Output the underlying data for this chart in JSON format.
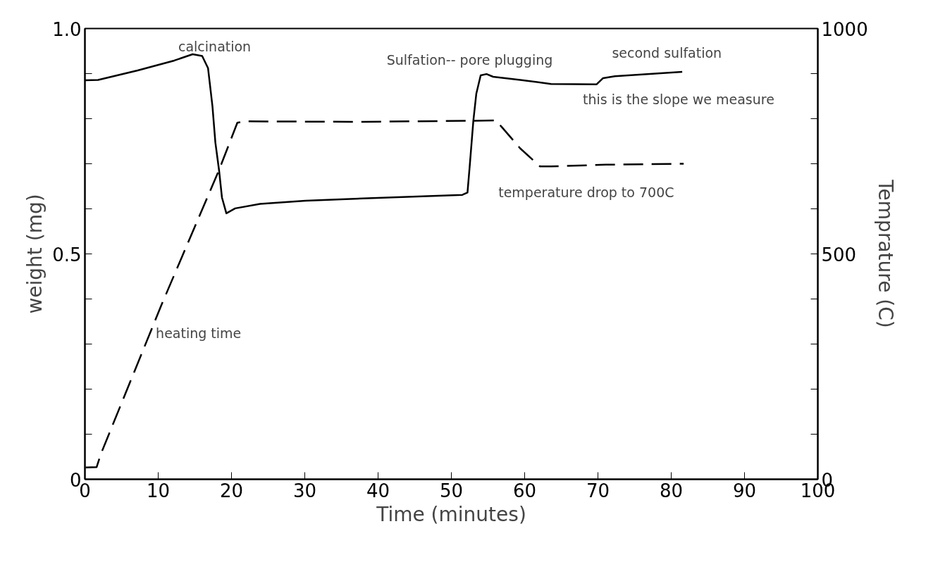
{
  "chart_data": {
    "type": "line",
    "xlabel": "Time (minutes)",
    "ylabel": "weight (mg)",
    "y2label": "Temprature (C)",
    "xlim": [
      0,
      100
    ],
    "xticks": [
      0,
      10,
      20,
      30,
      40,
      50,
      60,
      70,
      80,
      90,
      100
    ],
    "ylim": [
      0,
      1
    ],
    "yticks": [
      0,
      {
        "value": 0.1,
        "label": null
      },
      {
        "value": 0.2,
        "label": null
      },
      {
        "value": 0.3,
        "label": null
      },
      {
        "value": 0.4,
        "label": null
      },
      {
        "value": 0.5,
        "label": "0.5"
      },
      {
        "value": 0.6,
        "label": null
      },
      {
        "value": 0.7,
        "label": null
      },
      {
        "value": 0.8,
        "label": null
      },
      {
        "value": 0.9,
        "label": null
      },
      {
        "value": 1,
        "label": "1.0"
      }
    ],
    "y2lim": [
      0,
      1000
    ],
    "y2ticks": [
      0,
      {
        "value": 100,
        "label": null
      },
      {
        "value": 200,
        "label": null
      },
      {
        "value": 300,
        "label": null
      },
      {
        "value": 400,
        "label": null
      },
      500,
      {
        "value": 600,
        "label": null
      },
      {
        "value": 700,
        "label": null
      },
      {
        "value": 800,
        "label": null
      },
      {
        "value": 900,
        "label": null
      },
      1000
    ],
    "grid": false,
    "series": [
      {
        "color": "#000000",
        "line_style": "solid",
        "x": [
          0,
          1.8,
          7.2,
          12.2,
          14.7,
          16.0,
          16.8,
          17.4,
          17.8,
          18.3,
          18.7,
          19.3,
          20.5,
          23.9,
          30.1,
          37.9,
          51.5,
          52.2,
          52.5,
          53.0,
          53.4,
          54.0,
          54.8,
          55.7,
          59.4,
          63.6,
          69.8,
          70.7,
          72.3,
          81.5
        ],
        "values": [
          0.885,
          0.886,
          0.907,
          0.929,
          0.943,
          0.939,
          0.912,
          0.828,
          0.747,
          0.686,
          0.625,
          0.59,
          0.601,
          0.611,
          0.618,
          0.623,
          0.631,
          0.636,
          0.694,
          0.795,
          0.855,
          0.896,
          0.899,
          0.893,
          0.886,
          0.877,
          0.876,
          0.89,
          0.894,
          0.904
        ]
      },
      {
        "color": "#000000",
        "line_style": "dashed",
        "axis": "y2",
        "x": [
          0.1,
          1.6,
          2.2,
          10.5,
          18.3,
          20.8,
          21.8,
          37.9,
          56.1,
          56.9,
          59.4,
          62.1,
          63.6,
          71.1,
          81.7
        ],
        "values": [
          26,
          27,
          57,
          389,
          686,
          791,
          794,
          793,
          796,
          781,
          734,
          694,
          694,
          698,
          700
        ]
      }
    ],
    "annotations": [
      "calcination",
      "Sulfation-- pore plugging",
      "second sulfation",
      "this is the slope we measure",
      "temperature drop to 700C",
      "heating time"
    ]
  }
}
